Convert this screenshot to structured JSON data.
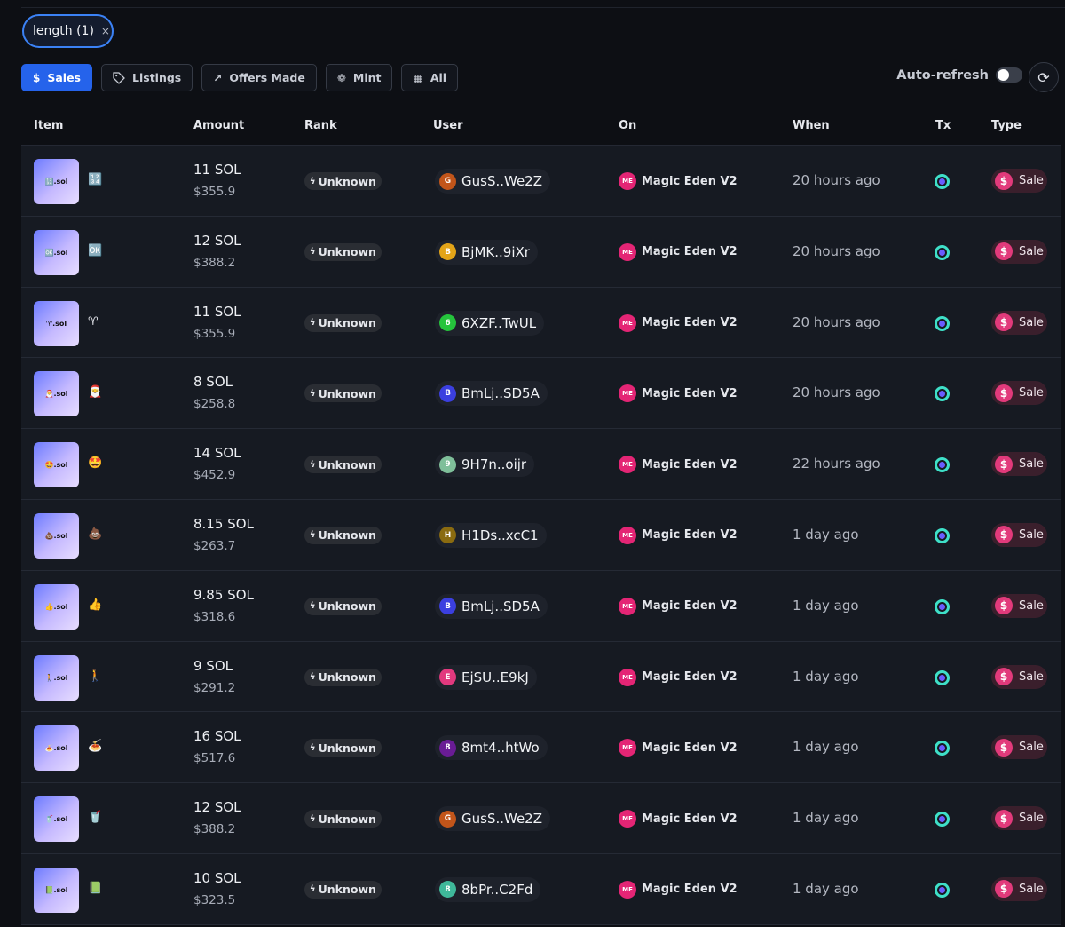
{
  "filter_chip": {
    "label": "length (1)",
    "close": "×"
  },
  "tabs": [
    {
      "label": "Sales",
      "icon": "$"
    },
    {
      "label": "Listings",
      "icon": "⌂"
    },
    {
      "label": "Offers Made",
      "icon": "↗"
    },
    {
      "label": "Mint",
      "icon": "❁"
    },
    {
      "label": "All",
      "icon": "▦"
    }
  ],
  "auto_refresh": {
    "label": "Auto-refresh",
    "state": "off"
  },
  "refresh_icon": "⟳",
  "table": {
    "headers": {
      "item": "Item",
      "amount": "Amount",
      "rank": "Rank",
      "user": "User",
      "on": "On",
      "when": "When",
      "tx": "Tx",
      "type": "Type"
    },
    "rows": [
      {
        "thumb": "🔢.sol",
        "emoji": "🔢",
        "amount": "11 SOL",
        "usd": "$355.9",
        "rank": "Unknown",
        "user_initial": "G",
        "user_color": "#c2551a",
        "user": "GusS..We2Z",
        "on": "Magic Eden V2",
        "when": "20 hours ago",
        "type": "Sale"
      },
      {
        "thumb": "🆗.sol",
        "emoji": "🆗",
        "amount": "12 SOL",
        "usd": "$388.2",
        "rank": "Unknown",
        "user_initial": "B",
        "user_color": "#e3a418",
        "user": "BjMK..9iXr",
        "on": "Magic Eden V2",
        "when": "20 hours ago",
        "type": "Sale"
      },
      {
        "thumb": "♈.sol",
        "emoji": "♈",
        "amount": "11 SOL",
        "usd": "$355.9",
        "rank": "Unknown",
        "user_initial": "6",
        "user_color": "#25c43c",
        "user": "6XZF..TwUL",
        "on": "Magic Eden V2",
        "when": "20 hours ago",
        "type": "Sale"
      },
      {
        "thumb": "🎅.sol",
        "emoji": "🎅",
        "amount": "8 SOL",
        "usd": "$258.8",
        "rank": "Unknown",
        "user_initial": "B",
        "user_color": "#3b3fe0",
        "user": "BmLj..SD5A",
        "on": "Magic Eden V2",
        "when": "20 hours ago",
        "type": "Sale"
      },
      {
        "thumb": "🤩.sol",
        "emoji": "🤩",
        "amount": "14 SOL",
        "usd": "$452.9",
        "rank": "Unknown",
        "user_initial": "9",
        "user_color": "#7fbf9a",
        "user": "9H7n..oijr",
        "on": "Magic Eden V2",
        "when": "22 hours ago",
        "type": "Sale"
      },
      {
        "thumb": "💩.sol",
        "emoji": "💩",
        "amount": "8.15 SOL",
        "usd": "$263.7",
        "rank": "Unknown",
        "user_initial": "H",
        "user_color": "#8a6b10",
        "user": "H1Ds..xcC1",
        "on": "Magic Eden V2",
        "when": "1 day ago",
        "type": "Sale"
      },
      {
        "thumb": "👍.sol",
        "emoji": "👍",
        "amount": "9.85 SOL",
        "usd": "$318.6",
        "rank": "Unknown",
        "user_initial": "B",
        "user_color": "#3b3fe0",
        "user": "BmLj..SD5A",
        "on": "Magic Eden V2",
        "when": "1 day ago",
        "type": "Sale"
      },
      {
        "thumb": "🚶.sol",
        "emoji": "🚶",
        "amount": "9 SOL",
        "usd": "$291.2",
        "rank": "Unknown",
        "user_initial": "E",
        "user_color": "#e2397e",
        "user": "EjSU..E9kJ",
        "on": "Magic Eden V2",
        "when": "1 day ago",
        "type": "Sale"
      },
      {
        "thumb": "🍝.sol",
        "emoji": "🍝",
        "amount": "16 SOL",
        "usd": "$517.6",
        "rank": "Unknown",
        "user_initial": "8",
        "user_color": "#6a1c95",
        "user": "8mt4..htWo",
        "on": "Magic Eden V2",
        "when": "1 day ago",
        "type": "Sale"
      },
      {
        "thumb": "🥤.sol",
        "emoji": "🥤",
        "amount": "12 SOL",
        "usd": "$388.2",
        "rank": "Unknown",
        "user_initial": "G",
        "user_color": "#c2551a",
        "user": "GusS..We2Z",
        "on": "Magic Eden V2",
        "when": "1 day ago",
        "type": "Sale"
      },
      {
        "thumb": "📗.sol",
        "emoji": "📗",
        "amount": "10 SOL",
        "usd": "$323.5",
        "rank": "Unknown",
        "user_initial": "8",
        "user_color": "#3fb89a",
        "user": "8bPr..C2Fd",
        "on": "Magic Eden V2",
        "when": "1 day ago",
        "type": "Sale"
      }
    ]
  },
  "marketplace_logo_text": "ME",
  "colors": {
    "accent": "#2563eb",
    "sale_badge": "#e23a7b",
    "marketplace": "#e42575"
  }
}
